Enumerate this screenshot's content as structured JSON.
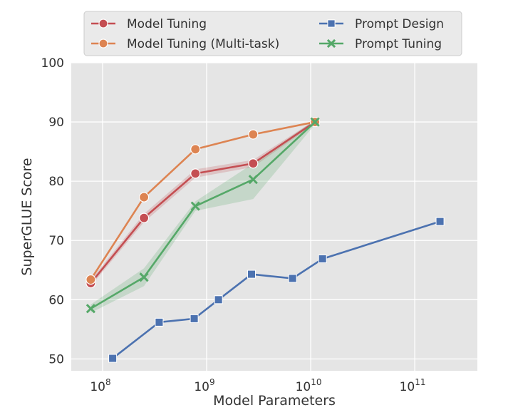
{
  "chart_data": {
    "type": "line",
    "xlabel": "Model Parameters",
    "ylabel": "SuperGLUE Score",
    "xscale": "log",
    "xlim": [
      50000000,
      400000000000
    ],
    "ylim": [
      48,
      100
    ],
    "yticks": [
      50,
      60,
      70,
      80,
      90,
      100
    ],
    "xticks": [
      {
        "value": 100000000,
        "base": "10",
        "exp": "8"
      },
      {
        "value": 1000000000,
        "base": "10",
        "exp": "9"
      },
      {
        "value": 10000000000,
        "base": "10",
        "exp": "10"
      },
      {
        "value": 100000000000,
        "base": "10",
        "exp": "11"
      }
    ],
    "grid": true,
    "legend_position": "top",
    "series": [
      {
        "name": "Model Tuning",
        "color": "#c44e52",
        "marker": "circle",
        "x": [
          77000000,
          250000000,
          780000000,
          2800000000,
          11000000000
        ],
        "y": [
          62.8,
          73.8,
          81.3,
          83.0,
          90.0
        ],
        "band": {
          "lower": [
            62.3,
            73.1,
            80.6,
            82.4,
            89.7
          ],
          "upper": [
            63.3,
            74.5,
            82.0,
            83.6,
            90.3
          ]
        }
      },
      {
        "name": "Model Tuning (Multi-task)",
        "color": "#dd8452",
        "marker": "circle",
        "x": [
          77000000,
          250000000,
          780000000,
          2800000000,
          11000000000
        ],
        "y": [
          63.4,
          77.3,
          85.4,
          87.9,
          90.0
        ]
      },
      {
        "name": "Prompt Design",
        "color": "#4c72b0",
        "marker": "square",
        "x": [
          125000000,
          350000000,
          760000000,
          1300000000,
          2700000000,
          6700000000,
          13000000000,
          175000000000
        ],
        "y": [
          50.1,
          56.2,
          56.8,
          60.0,
          64.3,
          63.6,
          66.9,
          73.2
        ]
      },
      {
        "name": "Prompt Tuning",
        "color": "#55a868",
        "marker": "x",
        "x": [
          77000000,
          250000000,
          780000000,
          2800000000,
          11000000000
        ],
        "y": [
          58.5,
          63.8,
          75.8,
          80.3,
          90.0
        ],
        "band": {
          "lower": [
            57.8,
            62.3,
            75.0,
            77.0,
            89.6
          ],
          "upper": [
            59.2,
            65.3,
            76.6,
            83.0,
            90.4
          ]
        }
      }
    ],
    "legend": [
      {
        "label": "Model Tuning",
        "color": "#c44e52",
        "marker": "circle"
      },
      {
        "label": "Model Tuning (Multi-task)",
        "color": "#dd8452",
        "marker": "circle"
      },
      {
        "label": "Prompt Design",
        "color": "#4c72b0",
        "marker": "square"
      },
      {
        "label": "Prompt Tuning",
        "color": "#55a868",
        "marker": "x"
      }
    ]
  }
}
